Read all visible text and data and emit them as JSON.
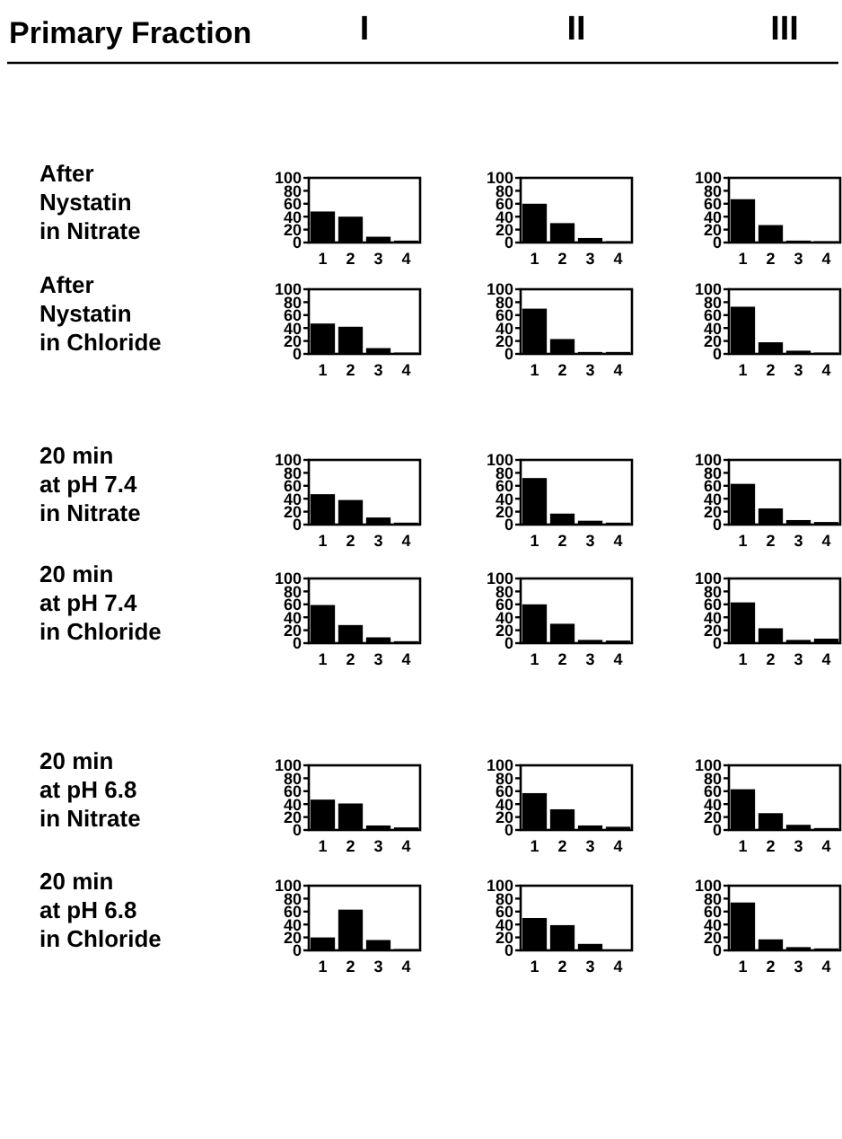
{
  "chart_data": [
    {
      "type": "bar",
      "title": "I",
      "ylabel": "After\nNystatin\nin Nitrate",
      "annotations": [
        "Primary Fraction"
      ],
      "categories": [
        "1",
        "2",
        "3",
        "4"
      ],
      "values": [
        48,
        40,
        9,
        3
      ],
      "color": "#000000",
      "ylim": [
        0,
        100
      ],
      "yticks": [
        0,
        20,
        40,
        60,
        80,
        100
      ]
    },
    {
      "type": "bar",
      "title": "II",
      "categories": [
        "1",
        "2",
        "3",
        "4"
      ],
      "values": [
        60,
        30,
        7,
        2
      ],
      "color": "#000000",
      "ylim": [
        0,
        100
      ],
      "yticks": [
        0,
        20,
        40,
        60,
        80,
        100
      ]
    },
    {
      "type": "bar",
      "title": "III",
      "categories": [
        "1",
        "2",
        "3",
        "4"
      ],
      "values": [
        67,
        27,
        3,
        2
      ],
      "color": "#000000",
      "ylim": [
        0,
        100
      ],
      "yticks": [
        0,
        20,
        40,
        60,
        80,
        100
      ]
    },
    {
      "type": "bar",
      "ylabel": "After\nNystatin\nin Chloride",
      "categories": [
        "1",
        "2",
        "3",
        "4"
      ],
      "values": [
        47,
        42,
        9,
        2
      ],
      "color": "#000000",
      "ylim": [
        0,
        100
      ],
      "yticks": [
        0,
        20,
        40,
        60,
        80,
        100
      ]
    },
    {
      "type": "bar",
      "categories": [
        "1",
        "2",
        "3",
        "4"
      ],
      "values": [
        70,
        23,
        3,
        3
      ],
      "color": "#000000",
      "ylim": [
        0,
        100
      ],
      "yticks": [
        0,
        20,
        40,
        60,
        80,
        100
      ]
    },
    {
      "type": "bar",
      "categories": [
        "1",
        "2",
        "3",
        "4"
      ],
      "values": [
        73,
        18,
        5,
        2
      ],
      "color": "#000000",
      "ylim": [
        0,
        100
      ],
      "yticks": [
        0,
        20,
        40,
        60,
        80,
        100
      ]
    },
    {
      "type": "bar",
      "ylabel": "20 min\nat pH 7.4\nin Nitrate",
      "categories": [
        "1",
        "2",
        "3",
        "4"
      ],
      "values": [
        47,
        38,
        11,
        3
      ],
      "color": "#000000",
      "ylim": [
        0,
        100
      ],
      "yticks": [
        0,
        20,
        40,
        60,
        80,
        100
      ]
    },
    {
      "type": "bar",
      "categories": [
        "1",
        "2",
        "3",
        "4"
      ],
      "values": [
        72,
        17,
        6,
        3
      ],
      "color": "#000000",
      "ylim": [
        0,
        100
      ],
      "yticks": [
        0,
        20,
        40,
        60,
        80,
        100
      ]
    },
    {
      "type": "bar",
      "categories": [
        "1",
        "2",
        "3",
        "4"
      ],
      "values": [
        63,
        25,
        7,
        4
      ],
      "color": "#000000",
      "ylim": [
        0,
        100
      ],
      "yticks": [
        0,
        20,
        40,
        60,
        80,
        100
      ]
    },
    {
      "type": "bar",
      "ylabel": "20 min\nat pH 7.4\nin Chloride",
      "categories": [
        "1",
        "2",
        "3",
        "4"
      ],
      "values": [
        59,
        28,
        9,
        3
      ],
      "color": "#000000",
      "ylim": [
        0,
        100
      ],
      "yticks": [
        0,
        20,
        40,
        60,
        80,
        100
      ]
    },
    {
      "type": "bar",
      "categories": [
        "1",
        "2",
        "3",
        "4"
      ],
      "values": [
        60,
        30,
        5,
        4
      ],
      "color": "#000000",
      "ylim": [
        0,
        100
      ],
      "yticks": [
        0,
        20,
        40,
        60,
        80,
        100
      ]
    },
    {
      "type": "bar",
      "categories": [
        "1",
        "2",
        "3",
        "4"
      ],
      "values": [
        63,
        23,
        5,
        7
      ],
      "color": "#000000",
      "ylim": [
        0,
        100
      ],
      "yticks": [
        0,
        20,
        40,
        60,
        80,
        100
      ]
    },
    {
      "type": "bar",
      "ylabel": "20 min\nat pH 6.8\nin Nitrate",
      "categories": [
        "1",
        "2",
        "3",
        "4"
      ],
      "values": [
        47,
        41,
        7,
        4
      ],
      "color": "#000000",
      "ylim": [
        0,
        100
      ],
      "yticks": [
        0,
        20,
        40,
        60,
        80,
        100
      ]
    },
    {
      "type": "bar",
      "categories": [
        "1",
        "2",
        "3",
        "4"
      ],
      "values": [
        57,
        32,
        7,
        5
      ],
      "color": "#000000",
      "ylim": [
        0,
        100
      ],
      "yticks": [
        0,
        20,
        40,
        60,
        80,
        100
      ]
    },
    {
      "type": "bar",
      "categories": [
        "1",
        "2",
        "3",
        "4"
      ],
      "values": [
        63,
        26,
        8,
        3
      ],
      "color": "#000000",
      "ylim": [
        0,
        100
      ],
      "yticks": [
        0,
        20,
        40,
        60,
        80,
        100
      ]
    },
    {
      "type": "bar",
      "ylabel": "20 min\nat pH 6.8\nin Chloride",
      "categories": [
        "1",
        "2",
        "3",
        "4"
      ],
      "values": [
        20,
        63,
        16,
        2
      ],
      "color": "#000000",
      "ylim": [
        0,
        100
      ],
      "yticks": [
        0,
        20,
        40,
        60,
        80,
        100
      ]
    },
    {
      "type": "bar",
      "categories": [
        "1",
        "2",
        "3",
        "4"
      ],
      "values": [
        50,
        39,
        10,
        1
      ],
      "color": "#000000",
      "ylim": [
        0,
        100
      ],
      "yticks": [
        0,
        20,
        40,
        60,
        80,
        100
      ]
    },
    {
      "type": "bar",
      "categories": [
        "1",
        "2",
        "3",
        "4"
      ],
      "values": [
        74,
        17,
        5,
        3
      ],
      "color": "#000000",
      "ylim": [
        0,
        100
      ],
      "yticks": [
        0,
        20,
        40,
        60,
        80,
        100
      ]
    }
  ]
}
